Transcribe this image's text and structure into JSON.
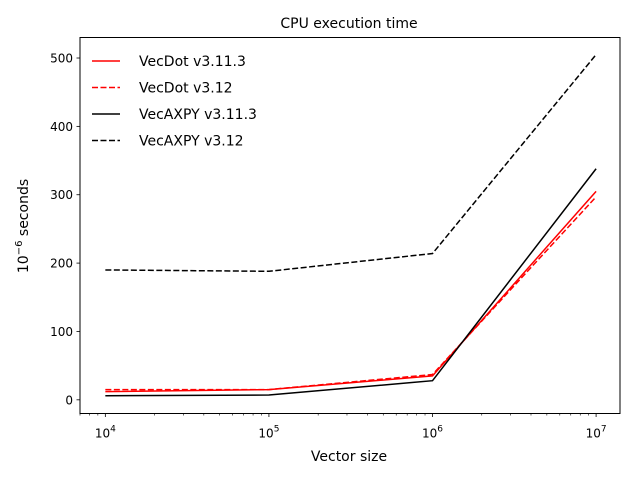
{
  "chart_data": {
    "type": "line",
    "title": "CPU execution time",
    "xlabel": "Vector size",
    "ylabel_base": "10",
    "ylabel_exp": "−6",
    "ylabel_unit": " seconds",
    "x_scale": "log",
    "xlim": [
      7000,
      14000000
    ],
    "ylim": [
      -20,
      530
    ],
    "x_ticks": [
      {
        "value": 10000,
        "base": "10",
        "exp": "4"
      },
      {
        "value": 100000,
        "base": "10",
        "exp": "5"
      },
      {
        "value": 1000000,
        "base": "10",
        "exp": "6"
      },
      {
        "value": 10000000,
        "base": "10",
        "exp": "7"
      }
    ],
    "y_ticks": [
      0,
      100,
      200,
      300,
      400,
      500
    ],
    "grid": false,
    "legend_position": "top-left",
    "x": [
      10000,
      100000,
      1000000,
      10000000
    ],
    "series": [
      {
        "name": "VecDot v3.11.3",
        "color": "#ff0000",
        "dash": "solid",
        "values": [
          12,
          15,
          35,
          305
        ]
      },
      {
        "name": "VecDot v3.12",
        "color": "#ff0000",
        "dash": "dashed",
        "values": [
          15,
          15,
          37,
          297
        ]
      },
      {
        "name": "VecAXPY v3.11.3",
        "color": "#000000",
        "dash": "solid",
        "values": [
          6,
          7,
          28,
          338
        ]
      },
      {
        "name": "VecAXPY v3.12",
        "color": "#000000",
        "dash": "dashed",
        "values": [
          190,
          188,
          214,
          505
        ]
      }
    ]
  }
}
